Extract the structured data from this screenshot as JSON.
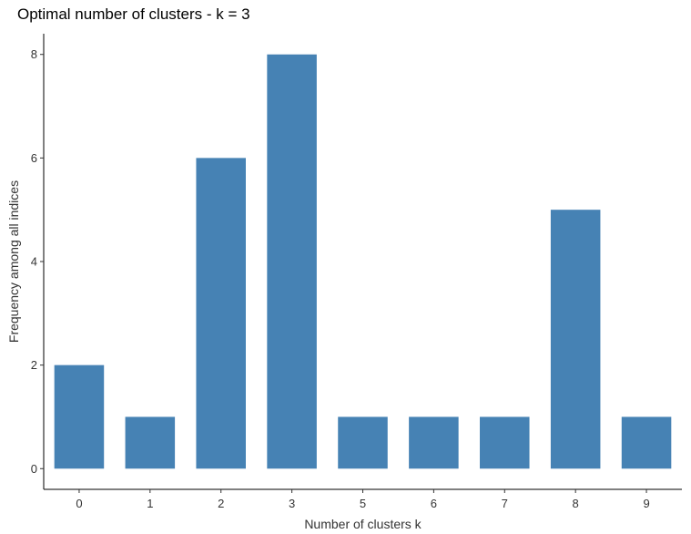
{
  "chart_data": {
    "type": "bar",
    "title": "Optimal number of clusters - k = 3",
    "xlabel": "Number of clusters k",
    "ylabel": "Frequency among all indices",
    "categories": [
      "0",
      "1",
      "2",
      "3",
      "5",
      "6",
      "7",
      "8",
      "9"
    ],
    "values": [
      2,
      1,
      6,
      8,
      1,
      1,
      1,
      5,
      1
    ],
    "yticks": [
      0,
      2,
      4,
      6,
      8
    ],
    "ylim": [
      -0.4,
      8.4
    ],
    "grid": false,
    "legend": "none",
    "bar_color": "#4682B4",
    "axis_color": "#000000"
  }
}
